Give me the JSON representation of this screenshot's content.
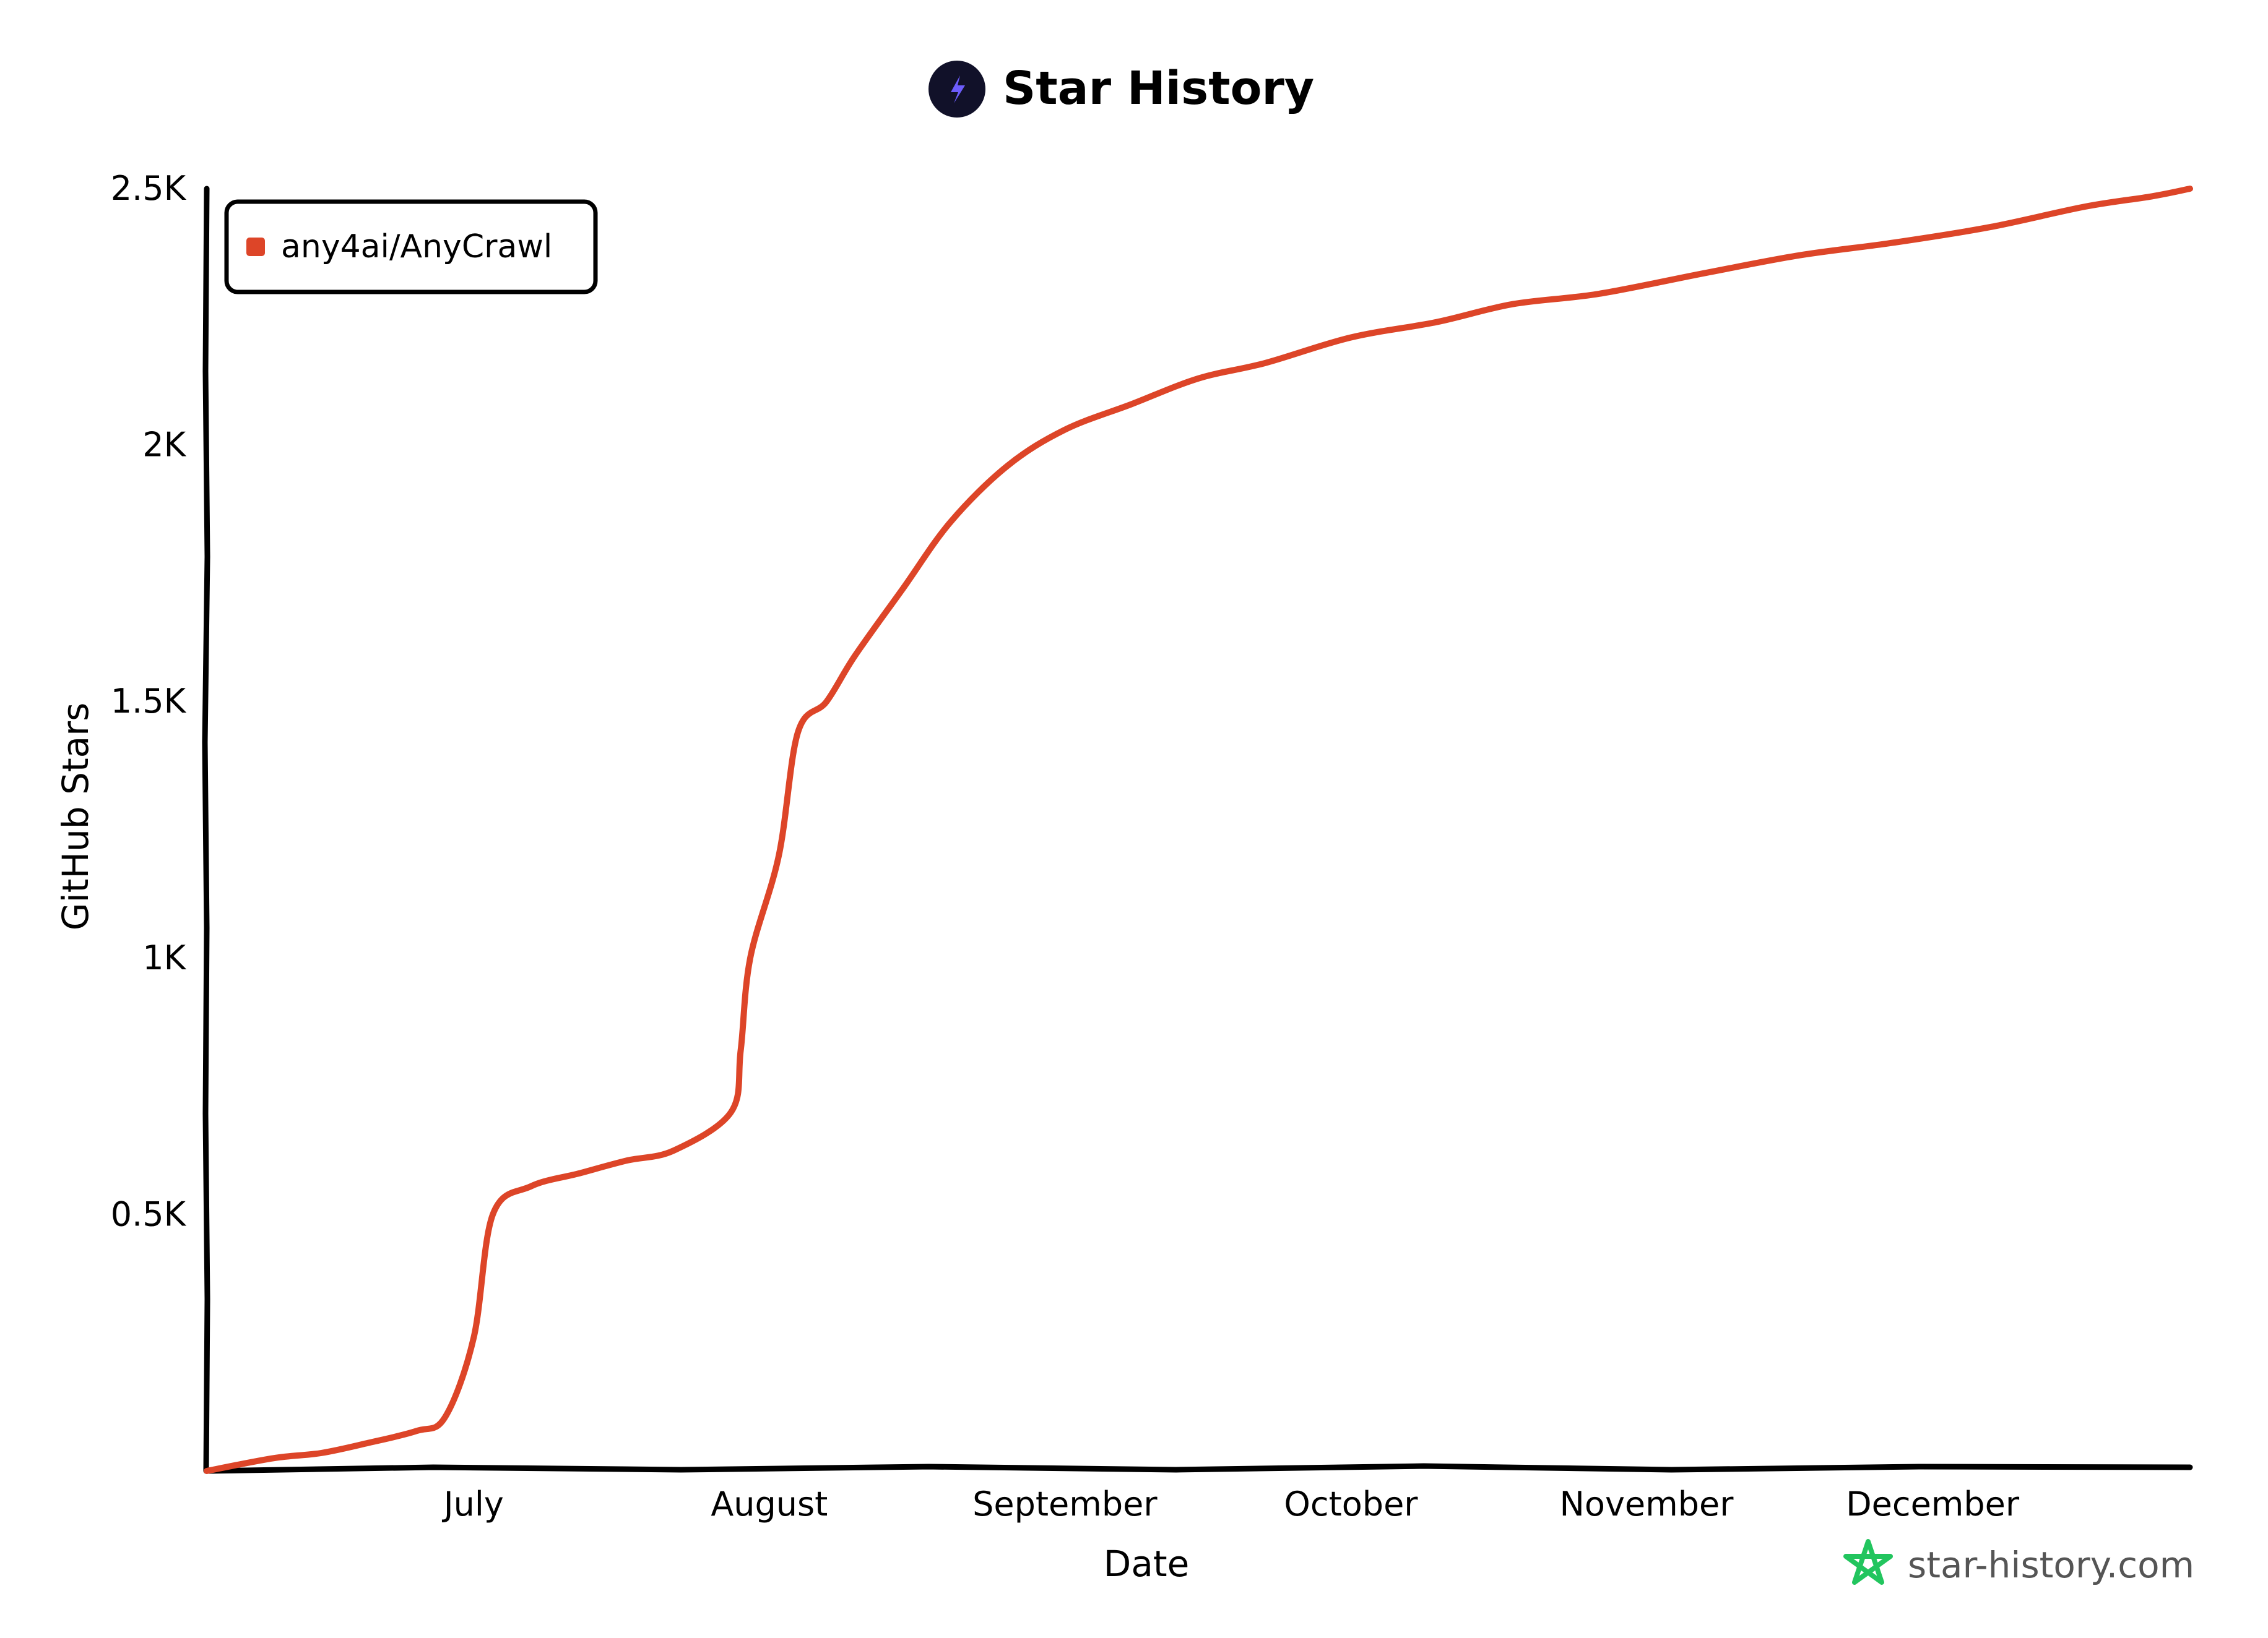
{
  "header": {
    "title": "Star History",
    "logo_icon": "lightning-bolt-icon"
  },
  "watermark": {
    "text": "star-history.com",
    "icon": "star-outline-icon",
    "color": "#22c55e"
  },
  "chart_data": {
    "type": "line",
    "title": "Star History",
    "xlabel": "Date",
    "ylabel": "GitHub Stars",
    "ylim": [
      0,
      2500
    ],
    "xlim": [
      "2025-06-03",
      "2025-12-28"
    ],
    "x_ticks": [
      {
        "date": "2025-07-01",
        "label": "July"
      },
      {
        "date": "2025-08-01",
        "label": "August"
      },
      {
        "date": "2025-09-01",
        "label": "September"
      },
      {
        "date": "2025-10-01",
        "label": "October"
      },
      {
        "date": "2025-11-01",
        "label": "November"
      },
      {
        "date": "2025-12-01",
        "label": "December"
      }
    ],
    "y_ticks": [
      {
        "value": 500,
        "label": "0.5K"
      },
      {
        "value": 1000,
        "label": "1K"
      },
      {
        "value": 1500,
        "label": "1.5K"
      },
      {
        "value": 2000,
        "label": "2K"
      },
      {
        "value": 2500,
        "label": "2.5K"
      }
    ],
    "legend_position": "top-left",
    "grid": false,
    "series": [
      {
        "name": "any4ai/AnyCrawl",
        "color": "#dd4528",
        "points": [
          {
            "x": "2025-06-03",
            "y": 0
          },
          {
            "x": "2025-06-10",
            "y": 25
          },
          {
            "x": "2025-06-15",
            "y": 35
          },
          {
            "x": "2025-06-20",
            "y": 55
          },
          {
            "x": "2025-06-25",
            "y": 78
          },
          {
            "x": "2025-06-28",
            "y": 105
          },
          {
            "x": "2025-07-01",
            "y": 260
          },
          {
            "x": "2025-07-03",
            "y": 500
          },
          {
            "x": "2025-07-07",
            "y": 555
          },
          {
            "x": "2025-07-12",
            "y": 580
          },
          {
            "x": "2025-07-17",
            "y": 605
          },
          {
            "x": "2025-07-22",
            "y": 625
          },
          {
            "x": "2025-07-28",
            "y": 700
          },
          {
            "x": "2025-07-29",
            "y": 820
          },
          {
            "x": "2025-07-30",
            "y": 1000
          },
          {
            "x": "2025-08-02",
            "y": 1200
          },
          {
            "x": "2025-08-04",
            "y": 1440
          },
          {
            "x": "2025-08-07",
            "y": 1500
          },
          {
            "x": "2025-08-10",
            "y": 1590
          },
          {
            "x": "2025-08-15",
            "y": 1720
          },
          {
            "x": "2025-08-20",
            "y": 1850
          },
          {
            "x": "2025-08-26",
            "y": 1960
          },
          {
            "x": "2025-09-01",
            "y": 2030
          },
          {
            "x": "2025-09-08",
            "y": 2080
          },
          {
            "x": "2025-09-15",
            "y": 2130
          },
          {
            "x": "2025-09-22",
            "y": 2160
          },
          {
            "x": "2025-10-01",
            "y": 2210
          },
          {
            "x": "2025-10-10",
            "y": 2240
          },
          {
            "x": "2025-10-18",
            "y": 2275
          },
          {
            "x": "2025-10-27",
            "y": 2295
          },
          {
            "x": "2025-11-07",
            "y": 2335
          },
          {
            "x": "2025-11-17",
            "y": 2370
          },
          {
            "x": "2025-11-27",
            "y": 2395
          },
          {
            "x": "2025-12-07",
            "y": 2425
          },
          {
            "x": "2025-12-17",
            "y": 2465
          },
          {
            "x": "2025-12-24",
            "y": 2485
          },
          {
            "x": "2025-12-28",
            "y": 2500
          }
        ]
      }
    ]
  }
}
